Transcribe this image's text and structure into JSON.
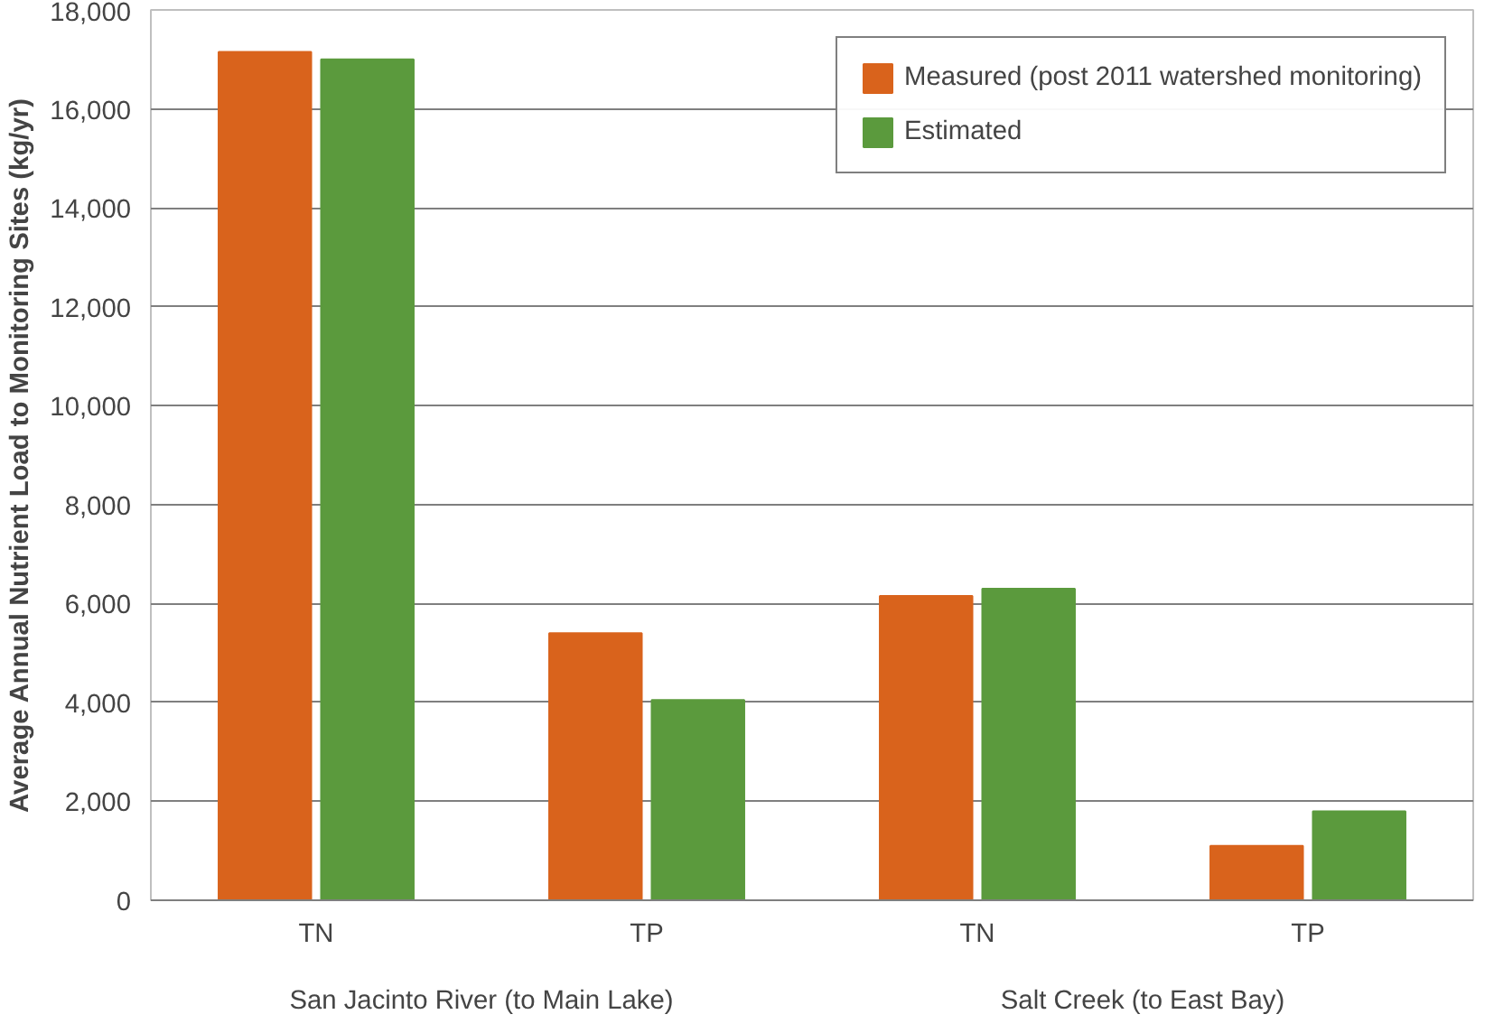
{
  "chart_data": {
    "type": "bar",
    "ylabel": "Average Annual Nutrient Load to Monitoring Sites (kg/yr)",
    "categories": [
      "TN",
      "TP",
      "TN",
      "TP"
    ],
    "annotations": [
      "San Jacinto River (to Main Lake)",
      "Salt Creek (to East Bay)"
    ],
    "series": [
      {
        "name": "Measured (post 2011 watershed monitoring)",
        "color": "#d9631c",
        "values": [
          17150,
          5400,
          6150,
          1100
        ]
      },
      {
        "name": "Estimated",
        "color": "#5b9a3d",
        "values": [
          17000,
          4050,
          6300,
          1800
        ]
      }
    ],
    "ylim": [
      0,
      18000
    ],
    "yticks": [
      {
        "value": 0,
        "label": "0"
      },
      {
        "value": 2000,
        "label": "2,000"
      },
      {
        "value": 4000,
        "label": "4,000"
      },
      {
        "value": 6000,
        "label": "6,000"
      },
      {
        "value": 8000,
        "label": "8,000"
      },
      {
        "value": 10000,
        "label": "10,000"
      },
      {
        "value": 12000,
        "label": "12,000"
      },
      {
        "value": 14000,
        "label": "14,000"
      },
      {
        "value": 16000,
        "label": "16,000"
      },
      {
        "value": 18000,
        "label": "18,000"
      }
    ],
    "grid": "y",
    "legend": "top right"
  }
}
